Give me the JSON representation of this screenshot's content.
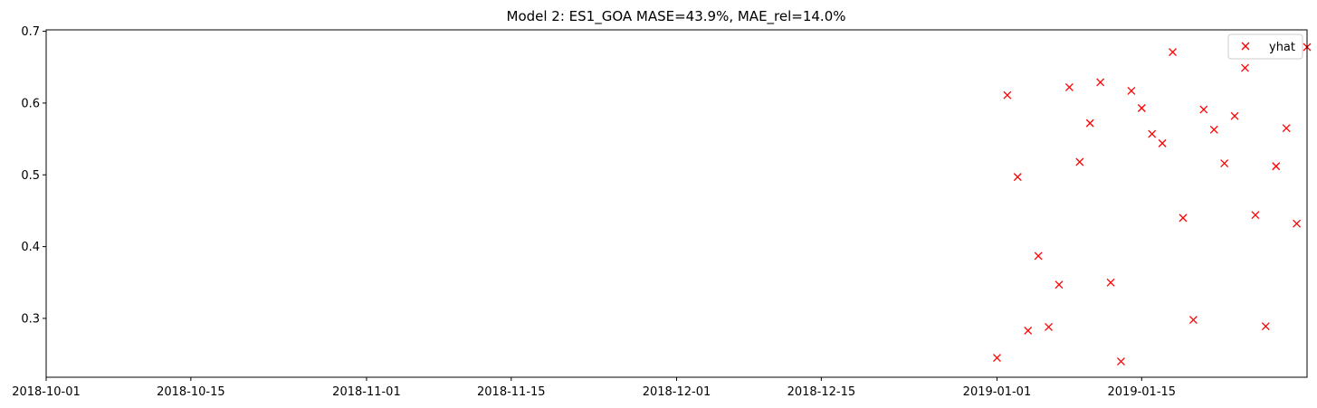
{
  "chart_data": {
    "type": "scatter",
    "title": "Model 2: ES1_GOA MASE=43.9%, MAE_rel=14.0%",
    "xlabel": "",
    "ylabel": "",
    "x_type": "date",
    "xlim": [
      "2018-10-01",
      "2019-01-31"
    ],
    "ylim": [
      0.218,
      0.702
    ],
    "x_ticks": [
      "2018-10-01",
      "2018-10-15",
      "2018-11-01",
      "2018-11-15",
      "2018-12-01",
      "2018-12-15",
      "2019-01-01",
      "2019-01-15"
    ],
    "y_ticks": [
      "0.3",
      "0.4",
      "0.5",
      "0.6",
      "0.7"
    ],
    "legend": {
      "position": "upper right",
      "entries": [
        "yhat"
      ]
    },
    "grid": false,
    "series": [
      {
        "name": "yhat",
        "marker": "x",
        "color": "#ff0000",
        "points": [
          {
            "x": "2019-01-01",
            "y": 0.245
          },
          {
            "x": "2019-01-02",
            "y": 0.611
          },
          {
            "x": "2019-01-03",
            "y": 0.497
          },
          {
            "x": "2019-01-04",
            "y": 0.283
          },
          {
            "x": "2019-01-05",
            "y": 0.387
          },
          {
            "x": "2019-01-06",
            "y": 0.288
          },
          {
            "x": "2019-01-07",
            "y": 0.347
          },
          {
            "x": "2019-01-08",
            "y": 0.622
          },
          {
            "x": "2019-01-09",
            "y": 0.518
          },
          {
            "x": "2019-01-10",
            "y": 0.572
          },
          {
            "x": "2019-01-11",
            "y": 0.629
          },
          {
            "x": "2019-01-12",
            "y": 0.35
          },
          {
            "x": "2019-01-13",
            "y": 0.24
          },
          {
            "x": "2019-01-14",
            "y": 0.617
          },
          {
            "x": "2019-01-15",
            "y": 0.593
          },
          {
            "x": "2019-01-16",
            "y": 0.557
          },
          {
            "x": "2019-01-17",
            "y": 0.544
          },
          {
            "x": "2019-01-18",
            "y": 0.671
          },
          {
            "x": "2019-01-19",
            "y": 0.44
          },
          {
            "x": "2019-01-20",
            "y": 0.298
          },
          {
            "x": "2019-01-21",
            "y": 0.591
          },
          {
            "x": "2019-01-22",
            "y": 0.563
          },
          {
            "x": "2019-01-23",
            "y": 0.516
          },
          {
            "x": "2019-01-24",
            "y": 0.582
          },
          {
            "x": "2019-01-25",
            "y": 0.649
          },
          {
            "x": "2019-01-26",
            "y": 0.444
          },
          {
            "x": "2019-01-27",
            "y": 0.289
          },
          {
            "x": "2019-01-28",
            "y": 0.512
          },
          {
            "x": "2019-01-29",
            "y": 0.565
          },
          {
            "x": "2019-01-30",
            "y": 0.432
          },
          {
            "x": "2019-01-31",
            "y": 0.678
          }
        ]
      }
    ]
  }
}
